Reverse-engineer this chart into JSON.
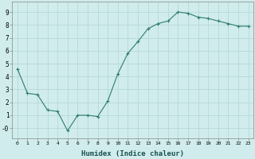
{
  "x": [
    0,
    1,
    2,
    3,
    4,
    5,
    6,
    7,
    8,
    9,
    10,
    11,
    12,
    13,
    14,
    15,
    16,
    17,
    18,
    19,
    20,
    21,
    22,
    23
  ],
  "y": [
    4.6,
    2.7,
    2.6,
    1.4,
    1.3,
    -0.2,
    1.0,
    1.0,
    0.9,
    2.1,
    4.2,
    5.8,
    6.7,
    7.7,
    8.1,
    8.3,
    9.0,
    8.9,
    8.6,
    8.5,
    8.3,
    8.1,
    7.9,
    7.9
  ],
  "line_color": "#2e7d6e",
  "marker": "+",
  "marker_size": 3,
  "bg_color": "#d0ecec",
  "grid_color": "#b8d8d8",
  "xlabel": "Humidex (Indice chaleur)",
  "xlim": [
    -0.5,
    23.5
  ],
  "ylim": [
    -0.8,
    9.8
  ],
  "yticks": [
    0,
    1,
    2,
    3,
    4,
    5,
    6,
    7,
    8,
    9
  ],
  "ytick_labels": [
    "-0",
    "1",
    "2",
    "3",
    "4",
    "5",
    "6",
    "7",
    "8",
    "9"
  ],
  "xticks": [
    0,
    1,
    2,
    3,
    4,
    5,
    6,
    7,
    8,
    9,
    10,
    11,
    12,
    13,
    14,
    15,
    16,
    17,
    18,
    19,
    20,
    21,
    22,
    23
  ]
}
